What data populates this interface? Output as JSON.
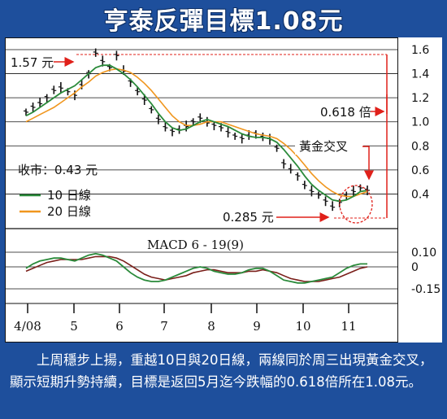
{
  "title": "亨泰反彈目標1.08元",
  "caption": "上周穩步上揚，重越10日與20日線，兩線同於周三出現黃金交叉，顯示短期升勢持續，目標是返回5月迄今跌幅的0.618倍所在1.08元。",
  "colors": {
    "brand_blue": "#1e4f9c",
    "ma10": "#2a8a3a",
    "ma20": "#f0961e",
    "annotation_red": "#e0201a",
    "macd_signal": "#7a1f1a",
    "price": "#111111"
  },
  "chart_data": [
    {
      "type": "candlestick",
      "title": "",
      "x_ticks": [
        "4/08",
        "5",
        "6",
        "7",
        "8",
        "9",
        "10",
        "11"
      ],
      "ylim": [
        0.2,
        1.6
      ],
      "y_ticks": [
        "1.6",
        "1.4",
        "1.2",
        "1.0",
        "0.8",
        "0.6",
        "0.4"
      ],
      "grid": true,
      "legend": "left-middle",
      "close_label": "收市：0.43 元",
      "series": [
        {
          "name": "10 日線",
          "role": "ma10",
          "values": [
            1.05,
            1.08,
            1.12,
            1.16,
            1.2,
            1.24,
            1.27,
            1.3,
            1.35,
            1.4,
            1.45,
            1.47,
            1.47,
            1.44,
            1.4,
            1.35,
            1.29,
            1.22,
            1.15,
            1.07,
            1.0,
            0.95,
            0.93,
            0.94,
            0.97,
            1.0,
            1.02,
            1.0,
            0.98,
            0.96,
            0.93,
            0.9,
            0.88,
            0.87,
            0.87,
            0.86,
            0.83,
            0.77,
            0.7,
            0.63,
            0.55,
            0.48,
            0.43,
            0.39,
            0.35,
            0.34,
            0.35,
            0.38,
            0.42,
            0.43
          ]
        },
        {
          "name": "20 日線",
          "role": "ma20",
          "values": [
            1.0,
            1.03,
            1.06,
            1.09,
            1.12,
            1.16,
            1.2,
            1.24,
            1.29,
            1.33,
            1.38,
            1.41,
            1.43,
            1.44,
            1.43,
            1.41,
            1.37,
            1.32,
            1.26,
            1.19,
            1.12,
            1.05,
            1.0,
            0.97,
            0.97,
            0.98,
            1.0,
            1.0,
            1.0,
            0.98,
            0.96,
            0.94,
            0.92,
            0.9,
            0.89,
            0.88,
            0.86,
            0.82,
            0.77,
            0.71,
            0.64,
            0.57,
            0.51,
            0.46,
            0.42,
            0.39,
            0.38,
            0.38,
            0.4,
            0.42
          ]
        },
        {
          "name": "price",
          "role": "price",
          "values": [
            1.08,
            1.12,
            1.15,
            1.2,
            1.26,
            1.28,
            1.25,
            1.22,
            1.3,
            1.4,
            1.57,
            1.5,
            1.45,
            1.55,
            1.42,
            1.33,
            1.25,
            1.18,
            1.1,
            1.02,
            0.95,
            0.92,
            0.93,
            0.96,
            1.0,
            1.03,
            0.99,
            0.97,
            0.95,
            0.91,
            0.88,
            0.86,
            0.88,
            0.9,
            0.87,
            0.85,
            0.78,
            0.65,
            0.6,
            0.55,
            0.47,
            0.42,
            0.39,
            0.34,
            0.29,
            0.33,
            0.38,
            0.42,
            0.45,
            0.43
          ]
        }
      ],
      "annotations": {
        "high_label": "1.57 元",
        "low_label": "0.285 元",
        "fib_label": "0.618 倍",
        "cross_label": "黃金交叉"
      }
    },
    {
      "type": "line",
      "title": "MACD 6 - 19(9)",
      "ylim": [
        -0.15,
        0.1
      ],
      "y_ticks": [
        "0.10",
        "0",
        "-0.15"
      ],
      "series": [
        {
          "role": "macd",
          "values": [
            -0.01,
            0.02,
            0.04,
            0.05,
            0.06,
            0.06,
            0.05,
            0.04,
            0.06,
            0.08,
            0.09,
            0.08,
            0.06,
            0.04,
            0.0,
            -0.04,
            -0.07,
            -0.09,
            -0.1,
            -0.1,
            -0.09,
            -0.07,
            -0.05,
            -0.03,
            -0.01,
            0.0,
            -0.01,
            -0.03,
            -0.04,
            -0.05,
            -0.05,
            -0.04,
            -0.02,
            -0.01,
            -0.01,
            -0.03,
            -0.06,
            -0.09,
            -0.1,
            -0.11,
            -0.11,
            -0.1,
            -0.09,
            -0.08,
            -0.07,
            -0.04,
            -0.01,
            0.01,
            0.02,
            0.02
          ]
        },
        {
          "role": "signal",
          "values": [
            -0.03,
            -0.01,
            0.01,
            0.03,
            0.04,
            0.05,
            0.05,
            0.05,
            0.05,
            0.06,
            0.07,
            0.07,
            0.07,
            0.06,
            0.04,
            0.01,
            -0.02,
            -0.05,
            -0.07,
            -0.08,
            -0.09,
            -0.08,
            -0.07,
            -0.06,
            -0.04,
            -0.03,
            -0.02,
            -0.02,
            -0.03,
            -0.04,
            -0.04,
            -0.04,
            -0.03,
            -0.03,
            -0.02,
            -0.03,
            -0.04,
            -0.06,
            -0.08,
            -0.09,
            -0.1,
            -0.1,
            -0.1,
            -0.09,
            -0.08,
            -0.07,
            -0.05,
            -0.03,
            -0.01,
            0.0
          ]
        }
      ]
    }
  ]
}
